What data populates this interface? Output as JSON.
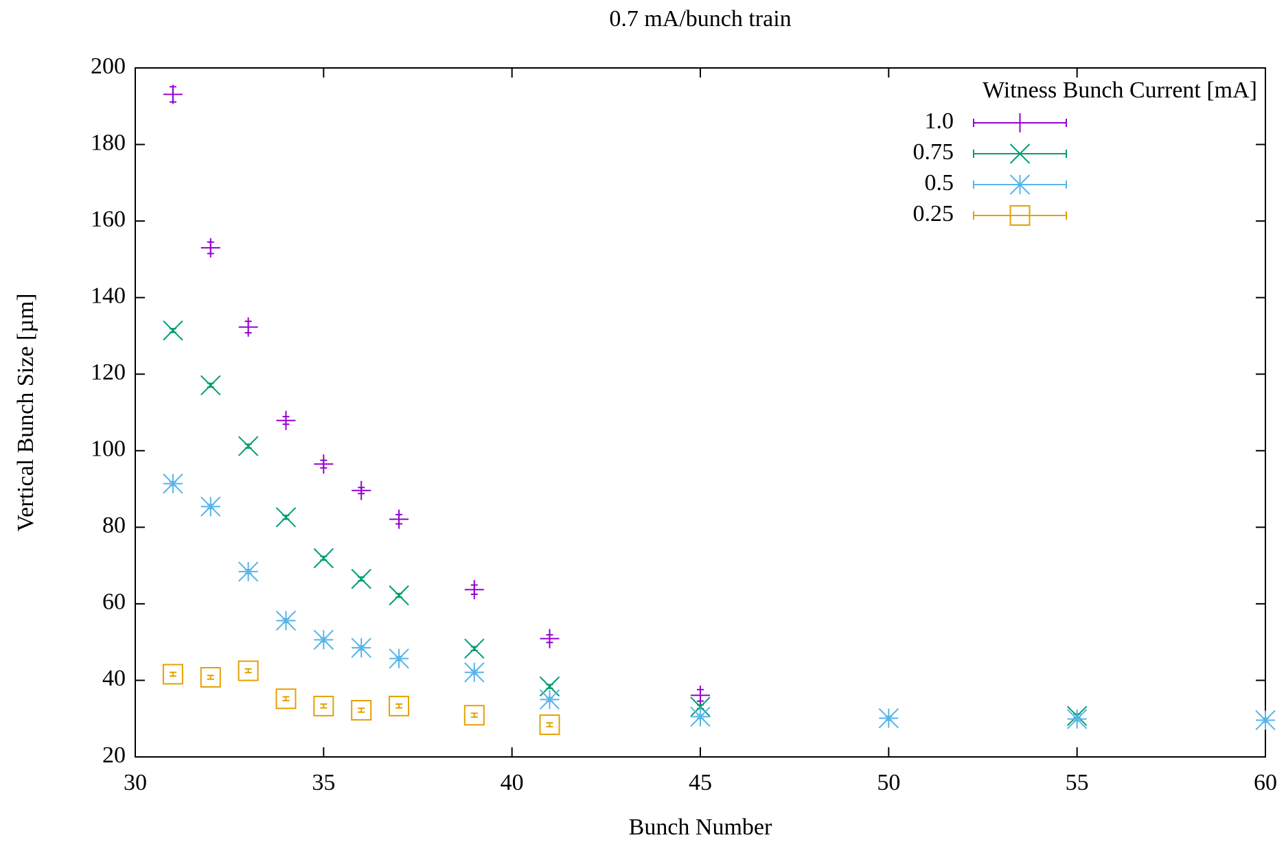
{
  "chart_data": {
    "type": "scatter",
    "title": "0.7 mA/bunch train",
    "x_label": "Bunch Number",
    "y_label": "Vertical Bunch Size [µm]",
    "legend_title": "Witness Bunch Current [mA]",
    "legend": "top-right",
    "xlim": [
      30,
      60
    ],
    "xticks": [
      30,
      35,
      40,
      45,
      50,
      55,
      60
    ],
    "ylim": [
      20,
      200
    ],
    "yticks": [
      20,
      40,
      60,
      80,
      100,
      120,
      140,
      160,
      180,
      200
    ],
    "grid": false,
    "series": [
      {
        "name": "1.0",
        "color": "#9400d3",
        "marker": "plus",
        "x": [
          31,
          32,
          33,
          34,
          35,
          36,
          37,
          39,
          41,
          45
        ],
        "values": [
          193.1,
          153,
          132.3,
          107.9,
          96.5,
          89.6,
          82.1,
          63.7,
          50.9,
          36.1
        ],
        "errors": [
          2,
          1.5,
          1.5,
          1,
          1,
          0.8,
          1.2,
          1.2,
          1,
          1.5
        ]
      },
      {
        "name": "0.75",
        "color": "#009e73",
        "marker": "cross",
        "x": [
          31,
          32,
          33,
          34,
          35,
          36,
          37,
          39,
          41,
          45,
          55
        ],
        "values": [
          131.4,
          117.1,
          101.2,
          82.6,
          71.9,
          66.5,
          62.2,
          48.3,
          38.4,
          33.1,
          30.7
        ],
        "errors": [
          0.5,
          0.5,
          0.5,
          0.5,
          0.5,
          0.5,
          0.5,
          0.5,
          0.5,
          0.5,
          0.5
        ]
      },
      {
        "name": "0.5",
        "color": "#56b4e9",
        "marker": "star",
        "x": [
          31,
          32,
          33,
          34,
          35,
          36,
          37,
          39,
          41,
          45,
          50,
          55,
          60
        ],
        "values": [
          91.4,
          85.4,
          68.4,
          55.6,
          50.6,
          48.5,
          45.7,
          42.1,
          35,
          30.5,
          30.1,
          29.9,
          29.6
        ],
        "errors": [
          0.5,
          0.5,
          0.5,
          0.5,
          0.5,
          0.5,
          0.5,
          0.5,
          0.5,
          0.5,
          0.5,
          0.5,
          0.5
        ]
      },
      {
        "name": "0.25",
        "color": "#e69f00",
        "marker": "square",
        "x": [
          31,
          32,
          33,
          34,
          35,
          36,
          37,
          39,
          41
        ],
        "values": [
          41.6,
          40.8,
          42.5,
          35.2,
          33.3,
          32.2,
          33.3,
          30.9,
          28.4
        ],
        "errors": [
          0.5,
          0.5,
          0.5,
          0.5,
          0.5,
          0.5,
          0.5,
          0.5,
          0.5
        ]
      }
    ]
  }
}
